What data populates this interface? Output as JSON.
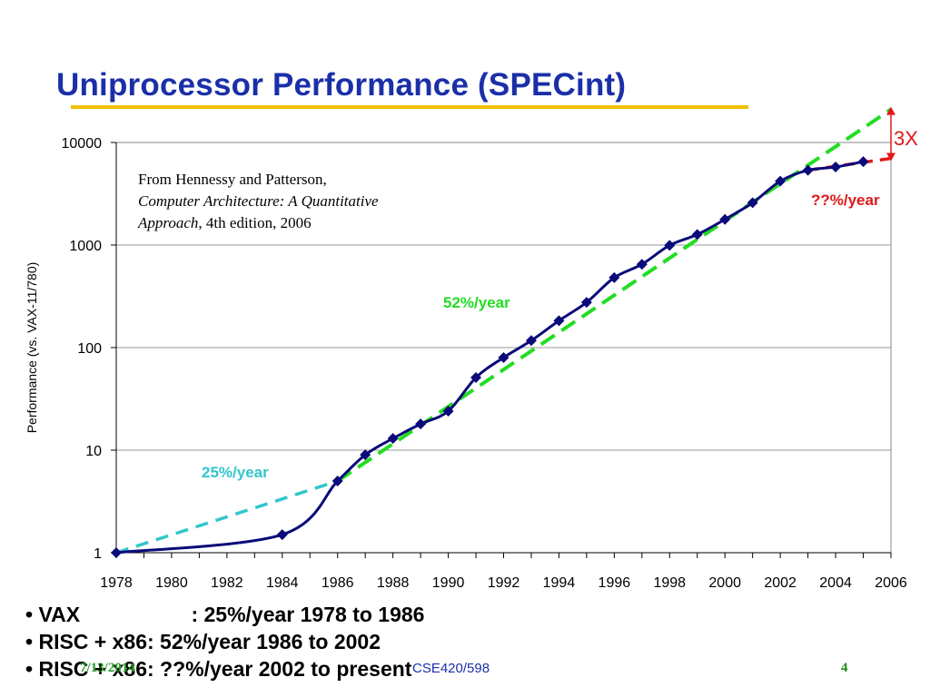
{
  "slide": {
    "title": "Uniprocessor Performance (SPECint)",
    "accent_color": "#f0c000",
    "title_color": "#1a2fa8"
  },
  "source_note": {
    "line1": "From Hennessy and Patterson,",
    "book_title_a": "Computer Architecture: A Quantitative",
    "book_title_b": "Approach",
    "edition": ", 4th edition, 2006"
  },
  "chart_data": {
    "type": "line",
    "ylabel": "Performance (vs. VAX-11/780)",
    "xlabel": "",
    "y_scale": "log",
    "ylim": [
      1,
      10000
    ],
    "xlim": [
      1978,
      2006
    ],
    "y_ticks": [
      "1",
      "10",
      "100",
      "1000",
      "10000"
    ],
    "x_ticks": [
      "1978",
      "1980",
      "1982",
      "1984",
      "1986",
      "1988",
      "1990",
      "1992",
      "1994",
      "1996",
      "1998",
      "2000",
      "2002",
      "2004",
      "2006"
    ],
    "grid": true,
    "series": [
      {
        "color": "#0a0a7a",
        "points": [
          [
            1978,
            1
          ],
          [
            1984,
            1.5
          ],
          [
            1986,
            5
          ],
          [
            1987,
            9
          ],
          [
            1988,
            13
          ],
          [
            1989,
            18
          ],
          [
            1990,
            24
          ],
          [
            1991,
            51
          ],
          [
            1992,
            80
          ],
          [
            1993,
            117
          ],
          [
            1994,
            183
          ],
          [
            1995,
            276
          ],
          [
            1996,
            481
          ],
          [
            1997,
            649
          ],
          [
            1998,
            993
          ],
          [
            1999,
            1267
          ],
          [
            2000,
            1779
          ],
          [
            2001,
            2584
          ],
          [
            2002,
            4195
          ],
          [
            2003,
            5364
          ],
          [
            2004,
            5764
          ],
          [
            2005,
            6505
          ]
        ]
      }
    ],
    "trendlines": [
      {
        "label": "25%/year",
        "color": "#33c6cc",
        "from": [
          1978,
          1
        ],
        "to": [
          1986,
          5
        ]
      },
      {
        "label": "52%/year",
        "color": "#22dd22",
        "from": [
          1986,
          5
        ],
        "to": [
          2006,
          21000
        ]
      },
      {
        "label": "??%/year",
        "color": "#e01818",
        "from": [
          2003,
          5364
        ],
        "to": [
          2006,
          7000
        ]
      }
    ],
    "annotations": [
      {
        "text": "3X",
        "color": "#e01818"
      }
    ]
  },
  "bullets": [
    {
      "left": "VAX",
      "right": ": 25%/year 1978 to 1986"
    },
    {
      "left": "RISC + x86",
      "right": ": 52%/year 1986 to 2002"
    },
    {
      "left": "RISC + x86",
      "right": ": ??%/year 2002 to present"
    }
  ],
  "footer": {
    "date": "7/13/2014",
    "course": "CSE420/598",
    "page": "4",
    "date_color": "#2a9a2a",
    "course_color": "#1a2fa8",
    "page_color": "#1a8a1a"
  }
}
